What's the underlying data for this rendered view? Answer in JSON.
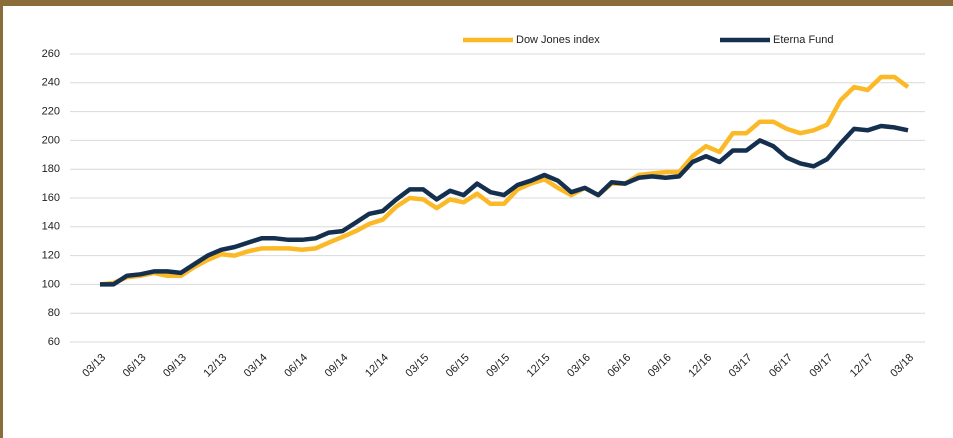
{
  "chart_data": {
    "type": "line",
    "categories": [
      "03/13",
      null,
      null,
      "06/13",
      null,
      null,
      "09/13",
      null,
      null,
      "12/13",
      null,
      null,
      "03/14",
      null,
      null,
      "06/14",
      null,
      null,
      "09/14",
      null,
      null,
      "12/14",
      null,
      null,
      "03/15",
      null,
      null,
      "06/15",
      null,
      null,
      "09/15",
      null,
      null,
      "12/15",
      null,
      null,
      "03/16",
      null,
      null,
      "06/16",
      null,
      null,
      "09/16",
      null,
      null,
      "12/16",
      null,
      null,
      "03/17",
      null,
      null,
      "06/17",
      null,
      null,
      "09/17",
      null,
      null,
      "12/17",
      null,
      null,
      "03/18"
    ],
    "series": [
      {
        "name": "Dow Jones index",
        "color": "#fbb927",
        "values": [
          100,
          101,
          105,
          106,
          108,
          106,
          106,
          112,
          117,
          121,
          120,
          123,
          125,
          125,
          125,
          124,
          125,
          129,
          133,
          137,
          142,
          145,
          154,
          160,
          159,
          153,
          159,
          157,
          163,
          156,
          156,
          166,
          170,
          173,
          167,
          162,
          167,
          162,
          170,
          170,
          176,
          177,
          178,
          178,
          189,
          196,
          192,
          205,
          205,
          213,
          213,
          208,
          205,
          207,
          211,
          228,
          237,
          235,
          244,
          244,
          237
        ]
      },
      {
        "name": "Eterna Fund",
        "color": "#15304f",
        "values": [
          100,
          100,
          106,
          107,
          109,
          109,
          108,
          114,
          120,
          124,
          126,
          129,
          132,
          132,
          131,
          131,
          132,
          136,
          137,
          143,
          149,
          151,
          159,
          166,
          166,
          159,
          165,
          162,
          170,
          164,
          162,
          169,
          172,
          176,
          172,
          164,
          167,
          162,
          171,
          170,
          174,
          175,
          174,
          175,
          185,
          189,
          185,
          193,
          193,
          200,
          196,
          188,
          184,
          182,
          187,
          198,
          208,
          207,
          210,
          209,
          207
        ]
      }
    ],
    "ylim": [
      60,
      260
    ],
    "yticks": [
      60,
      80,
      100,
      120,
      140,
      160,
      180,
      200,
      220,
      240,
      260
    ],
    "grid": true,
    "legend": "top"
  }
}
